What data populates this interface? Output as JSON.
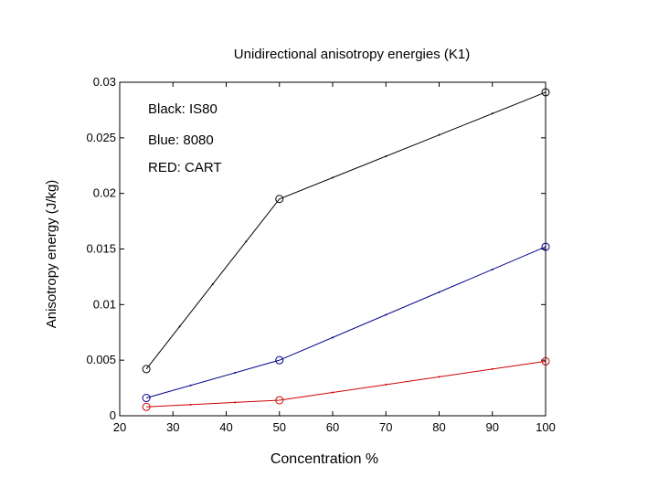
{
  "chart_data": {
    "type": "line",
    "title": "Unidirectional anisotropy energies (K1)",
    "xlabel": "Concentration %",
    "ylabel": "Anisotropy energy (J/kg)",
    "xlim": [
      20,
      100
    ],
    "ylim": [
      0,
      0.03
    ],
    "xticks": [
      20,
      30,
      40,
      50,
      60,
      70,
      80,
      90,
      100
    ],
    "yticks": [
      0,
      0.005,
      0.01,
      0.015,
      0.02,
      0.025,
      0.03
    ],
    "ytick_labels": [
      "0",
      "0.005",
      "0.01",
      "0.015",
      "0.02",
      "0.025",
      "0.03"
    ],
    "grid": false,
    "x": [
      25,
      50,
      100
    ],
    "series": [
      {
        "name": "IS80",
        "color": "#000000",
        "values": [
          0.0042,
          0.0195,
          0.0291
        ]
      },
      {
        "name": "8080",
        "color": "#00008b",
        "values": [
          0.0016,
          0.005,
          0.0152
        ]
      },
      {
        "name": "CART",
        "color": "#cc0000",
        "values": [
          0.0008,
          0.0014,
          0.0049
        ]
      }
    ],
    "annotations": [
      "Black: IS80",
      "Blue: 8080",
      "RED: CART"
    ]
  }
}
